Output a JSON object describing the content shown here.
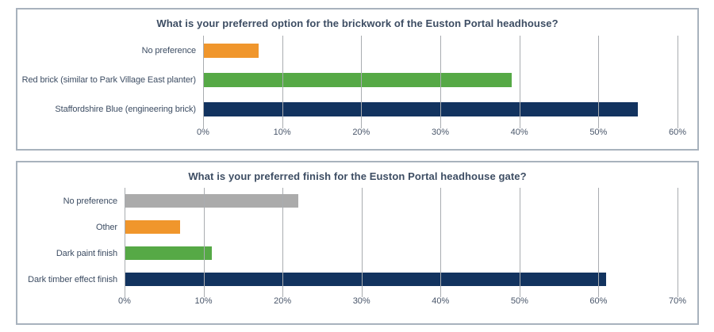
{
  "page": {
    "background": "#FFFFFF",
    "panel_border_color": "#A8B2BD",
    "grid_color": "#A9ACB0",
    "title_text_color": "#3D4D63",
    "tick_text_color": "#49566A"
  },
  "chart_data": [
    {
      "type": "bar",
      "orientation": "horizontal",
      "title": "What is your preferred option for the brickwork of the Euston Portal headhouse?",
      "categories": [
        "No preference",
        "Red brick (similar to Park Village East planter)",
        "Staffordshire Blue (engineering brick)"
      ],
      "values": [
        7,
        39,
        55
      ],
      "bar_colors": [
        "#F0962C",
        "#56A946",
        "#12335F"
      ],
      "xlabel": "",
      "ylabel": "",
      "xlim": [
        0,
        60
      ],
      "tick_labels": [
        "0%",
        "10%",
        "20%",
        "30%",
        "40%",
        "50%",
        "60%"
      ],
      "grid": true,
      "legend": false
    },
    {
      "type": "bar",
      "orientation": "horizontal",
      "title": "What is your preferred finish for the Euston Portal headhouse gate?",
      "categories": [
        "No preference",
        "Other",
        "Dark paint finish",
        "Dark timber effect finish"
      ],
      "values": [
        22,
        7,
        11,
        61
      ],
      "bar_colors": [
        "#ABABAB",
        "#F0962C",
        "#56A946",
        "#12335F"
      ],
      "xlabel": "",
      "ylabel": "",
      "xlim": [
        0,
        70
      ],
      "tick_labels": [
        "0%",
        "10%",
        "20%",
        "30%",
        "40%",
        "50%",
        "60%",
        "70%"
      ],
      "grid": true,
      "legend": false
    }
  ]
}
